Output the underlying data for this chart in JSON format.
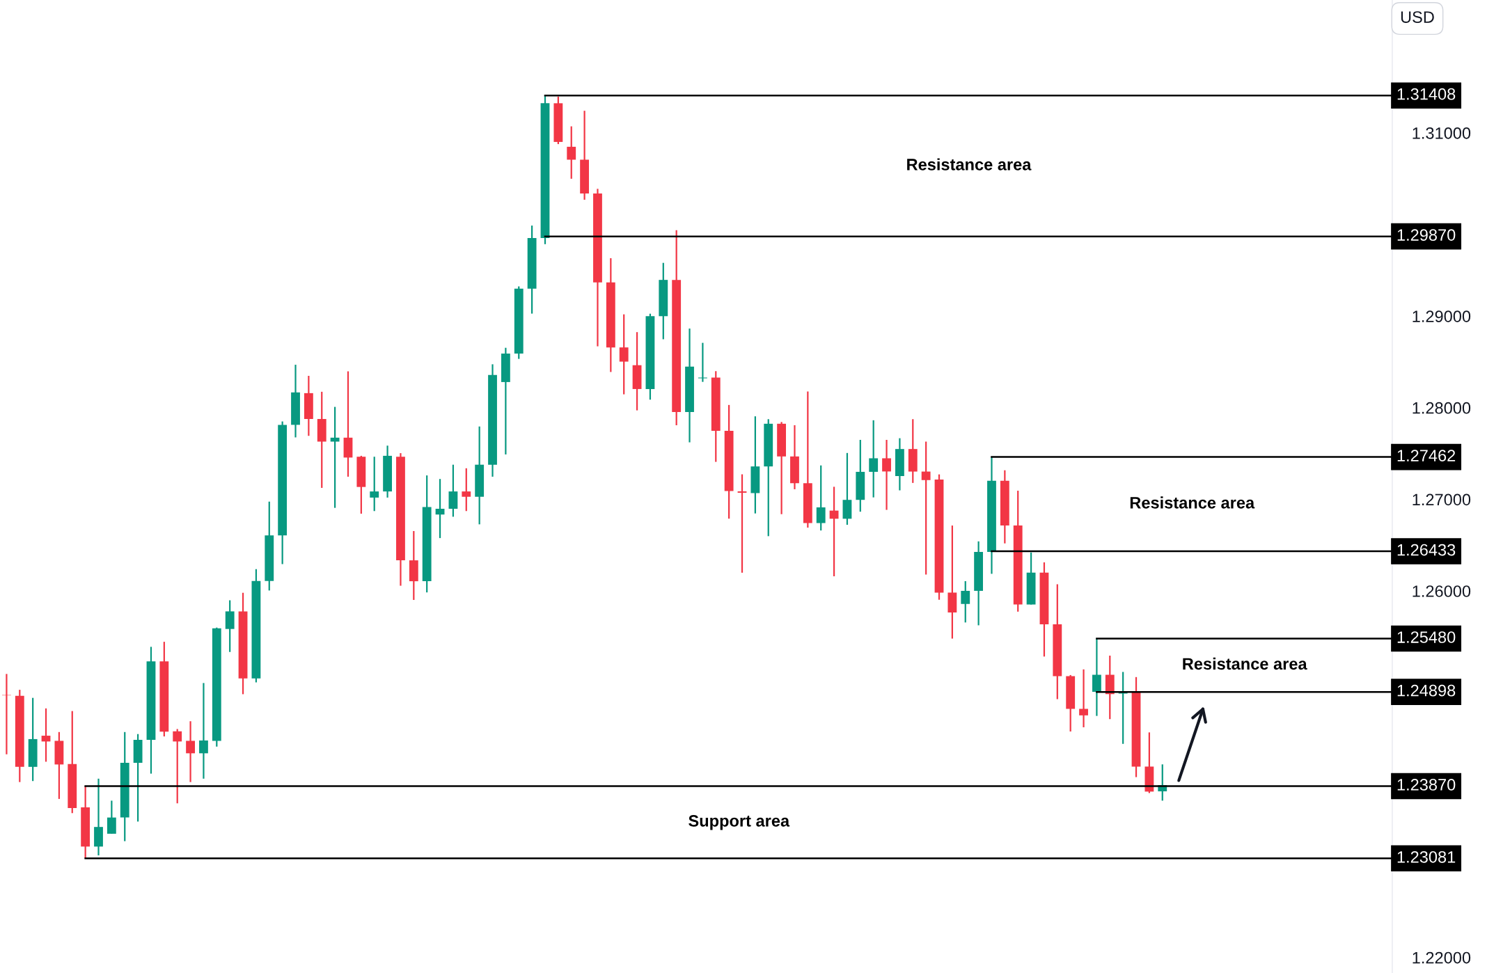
{
  "chart_data": {
    "type": "candlestick",
    "categories": [
      null,
      null,
      null,
      null,
      null,
      null,
      null,
      null,
      null,
      null,
      null,
      null,
      null,
      null,
      null,
      null,
      null,
      null,
      null,
      null,
      null,
      null,
      null,
      null,
      null,
      null,
      null,
      null,
      null,
      null,
      null,
      null,
      null,
      null,
      null,
      null,
      null,
      null,
      null,
      null,
      null,
      null,
      null,
      null,
      null,
      null,
      null,
      null,
      null,
      null,
      null,
      null,
      null,
      null,
      null,
      null,
      null,
      null,
      null,
      null,
      null,
      null,
      null,
      null,
      null,
      null,
      null,
      null,
      null,
      null,
      null,
      null,
      null,
      null,
      null,
      null,
      null,
      null,
      null,
      null,
      null,
      null,
      null,
      null,
      null,
      null,
      null,
      null,
      null,
      null,
      null,
      null,
      null,
      null,
      null,
      null,
      null,
      null,
      null,
      null,
      null,
      null,
      null,
      null,
      null,
      null
    ],
    "ohlc": [
      [
        1.24862,
        1.25094,
        1.24217,
        1.2486
      ],
      [
        1.24855,
        1.24921,
        1.23914,
        1.2408
      ],
      [
        1.2408,
        1.24833,
        1.23925,
        1.24383
      ],
      [
        1.2442,
        1.24718,
        1.24136,
        1.24357
      ],
      [
        1.24364,
        1.2446,
        1.2373,
        1.24106
      ],
      [
        1.2411,
        1.24689,
        1.23575,
        1.2363
      ],
      [
        1.23638,
        1.2387,
        1.23081,
        1.2321
      ],
      [
        1.2321,
        1.23951,
        1.23114,
        1.23424
      ],
      [
        1.2335,
        1.23711,
        1.2335,
        1.23527
      ],
      [
        1.23527,
        1.2446,
        1.23269,
        1.24124
      ],
      [
        1.24124,
        1.24438,
        1.23483,
        1.24375
      ],
      [
        1.24375,
        1.2539,
        1.24006,
        1.25231
      ],
      [
        1.25231,
        1.25445,
        1.24412,
        1.24464
      ],
      [
        1.24468,
        1.24493,
        1.23682,
        1.24357
      ],
      [
        1.24364,
        1.24578,
        1.23914,
        1.24228
      ],
      [
        1.24228,
        1.24995,
        1.23951,
        1.24368
      ],
      [
        1.24364,
        1.256,
        1.24301,
        1.25592
      ],
      [
        1.25585,
        1.25898,
        1.25334,
        1.25777
      ],
      [
        1.25777,
        1.2598,
        1.24873,
        1.25046
      ],
      [
        1.25046,
        1.26238,
        1.25002,
        1.26109
      ],
      [
        1.26109,
        1.26975,
        1.26005,
        1.26607
      ],
      [
        1.26607,
        1.2785,
        1.26293,
        1.27813
      ],
      [
        1.27813,
        1.28469,
        1.27676,
        1.28167
      ],
      [
        1.28159,
        1.28348,
        1.27693,
        1.27877
      ],
      [
        1.27877,
        1.28174,
        1.27125,
        1.2763
      ],
      [
        1.2763,
        1.28009,
        1.26907,
        1.27673
      ],
      [
        1.27673,
        1.28397,
        1.27247,
        1.27456
      ],
      [
        1.27465,
        1.27475,
        1.26843,
        1.27135
      ],
      [
        1.27019,
        1.27465,
        1.26872,
        1.27086
      ],
      [
        1.27086,
        1.27586,
        1.27019,
        1.27475
      ],
      [
        1.27465,
        1.27504,
        1.26057,
        1.26334
      ],
      [
        1.26334,
        1.26654,
        1.25902,
        1.26106
      ],
      [
        1.26106,
        1.27261,
        1.25984,
        1.26916
      ],
      [
        1.26834,
        1.27222,
        1.26577,
        1.26897
      ],
      [
        1.26897,
        1.27378,
        1.2681,
        1.27086
      ],
      [
        1.27086,
        1.27339,
        1.26872,
        1.27028
      ],
      [
        1.27028,
        1.27795,
        1.26727,
        1.27378
      ],
      [
        1.27378,
        1.28474,
        1.27247,
        1.28358
      ],
      [
        1.2828,
        1.28654,
        1.2749,
        1.28591
      ],
      [
        1.28591,
        1.29324,
        1.28533,
        1.29299
      ],
      [
        1.29299,
        1.29988,
        1.29027,
        1.29852
      ],
      [
        1.29852,
        1.31408,
        1.29785,
        1.31323
      ],
      [
        1.31323,
        1.31396,
        1.30877,
        1.30901
      ],
      [
        1.30848,
        1.31071,
        1.30499,
        1.30707
      ],
      [
        1.30707,
        1.31241,
        1.3027,
        1.30338
      ],
      [
        1.30338,
        1.30389,
        1.2867,
        1.29368
      ],
      [
        1.29368,
        1.29632,
        1.2839,
        1.28658
      ],
      [
        1.28658,
        1.29019,
        1.28146,
        1.28503
      ],
      [
        1.28464,
        1.28825,
        1.27971,
        1.28204
      ],
      [
        1.28204,
        1.29026,
        1.28088,
        1.28999
      ],
      [
        1.28999,
        1.29581,
        1.28747,
        1.29395
      ],
      [
        1.29395,
        1.29938,
        1.27808,
        1.27952
      ],
      [
        1.27952,
        1.28864,
        1.27622,
        1.28448
      ],
      [
        1.28321,
        1.28708,
        1.28282,
        1.28329
      ],
      [
        1.28329,
        1.28399,
        1.27409,
        1.27747
      ],
      [
        1.27747,
        1.2803,
        1.26789,
        1.27091
      ],
      [
        1.27087,
        1.27273,
        1.26199,
        1.27072
      ],
      [
        1.27068,
        1.27906,
        1.26846,
        1.27359
      ],
      [
        1.27359,
        1.27875,
        1.26598,
        1.27825
      ],
      [
        1.27825,
        1.27844,
        1.26838,
        1.27468
      ],
      [
        1.27468,
        1.27809,
        1.2711,
        1.27176
      ],
      [
        1.27176,
        1.28177,
        1.26691,
        1.26741
      ],
      [
        1.26741,
        1.2737,
        1.2666,
        1.26912
      ],
      [
        1.26877,
        1.27137,
        1.2616,
        1.26788
      ],
      [
        1.26788,
        1.27506,
        1.26722,
        1.26994
      ],
      [
        1.26994,
        1.27649,
        1.26865,
        1.273
      ],
      [
        1.273,
        1.27863,
        1.27021,
        1.27448
      ],
      [
        1.27448,
        1.27649,
        1.26885,
        1.27304
      ],
      [
        1.27254,
        1.27667,
        1.27098,
        1.27549
      ],
      [
        1.27549,
        1.27875,
        1.27179,
        1.27303
      ],
      [
        1.27303,
        1.2763,
        1.26179,
        1.2721
      ],
      [
        1.27216,
        1.27272,
        1.25904,
        1.25982
      ],
      [
        1.25982,
        1.26714,
        1.2548,
        1.25765
      ],
      [
        1.25858,
        1.26107,
        1.25656,
        1.26001
      ],
      [
        1.26001,
        1.26541,
        1.25625,
        1.26426
      ],
      [
        1.26426,
        1.27462,
        1.26187,
        1.27202
      ],
      [
        1.27202,
        1.27317,
        1.26519,
        1.26715
      ],
      [
        1.26715,
        1.27094,
        1.25774,
        1.25852
      ],
      [
        1.25852,
        1.2642,
        1.25852,
        1.262
      ],
      [
        1.262,
        1.26312,
        1.25284,
        1.25635
      ],
      [
        1.25635,
        1.26073,
        1.24819,
        1.2507
      ],
      [
        1.2507,
        1.25082,
        1.24466,
        1.24713
      ],
      [
        1.24713,
        1.25144,
        1.24512,
        1.24642
      ],
      [
        1.24899,
        1.2548,
        1.24636,
        1.25085
      ],
      [
        1.25085,
        1.25294,
        1.24601,
        1.24874
      ],
      [
        1.2488,
        1.25116,
        1.24331,
        1.24899
      ],
      [
        1.24899,
        1.2506,
        1.23968,
        1.24083
      ],
      [
        1.24083,
        1.24456,
        1.23794,
        1.2381
      ],
      [
        1.23813,
        1.24107,
        1.23711,
        1.23881
      ],
      null,
      null,
      null,
      null,
      null,
      null,
      null,
      null,
      null,
      null,
      null,
      null,
      null,
      null,
      null,
      null,
      null
    ],
    "ylim": [
      1.2183,
      1.3245
    ],
    "yticks": [
      {
        "value": 1.31,
        "label": "1.31000"
      },
      {
        "value": 1.29,
        "label": "1.29000"
      },
      {
        "value": 1.28,
        "label": "1.28000"
      },
      {
        "value": 1.27,
        "label": "1.27000"
      },
      {
        "value": 1.26,
        "label": "1.26000"
      },
      {
        "value": 1.22,
        "label": "1.22000"
      }
    ],
    "ref_lines": [
      {
        "axis": "y",
        "value": 1.31408,
        "label": "1.31408",
        "color": "#000000"
      },
      {
        "axis": "y",
        "value": 1.2987,
        "label": "1.29870",
        "color": "#000000"
      },
      {
        "axis": "y",
        "value": 1.27462,
        "label": "1.27462",
        "color": "#000000"
      },
      {
        "axis": "y",
        "value": 1.26433,
        "label": "1.26433",
        "color": "#000000"
      },
      {
        "axis": "y",
        "value": 1.2548,
        "label": "1.25480",
        "color": "#000000"
      },
      {
        "axis": "y",
        "value": 1.24898,
        "label": "1.24898",
        "color": "#000000"
      },
      {
        "axis": "y",
        "value": 1.2387,
        "label": "1.23870",
        "color": "#000000"
      },
      {
        "axis": "y",
        "value": 1.23081,
        "label": "1.23081",
        "color": "#000000"
      }
    ],
    "annotations": [
      "Resistance area",
      "Resistance area",
      "Resistance area",
      "Support area",
      "USD"
    ],
    "grid": false,
    "legend": false
  }
}
